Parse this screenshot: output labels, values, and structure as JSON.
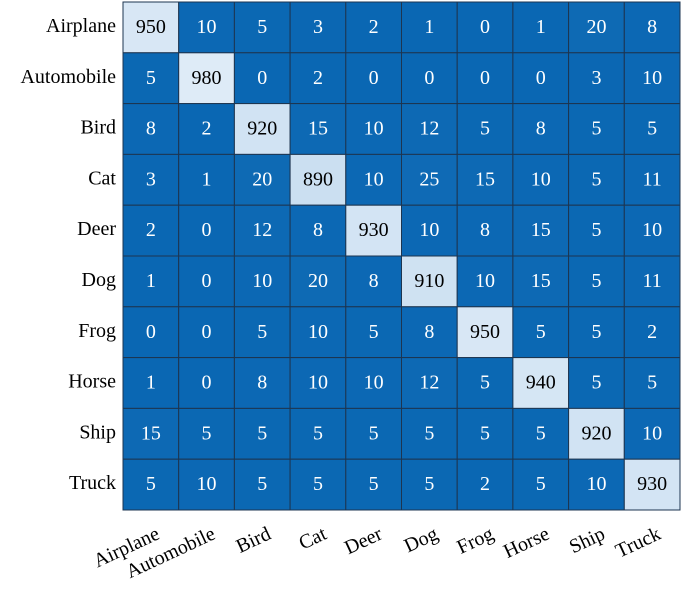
{
  "chart_data": {
    "type": "heatmap",
    "x_categories": [
      "Airplane",
      "Automobile",
      "Bird",
      "Cat",
      "Deer",
      "Dog",
      "Frog",
      "Horse",
      "Ship",
      "Truck"
    ],
    "y_categories": [
      "Airplane",
      "Automobile",
      "Bird",
      "Cat",
      "Deer",
      "Dog",
      "Frog",
      "Horse",
      "Ship",
      "Truck"
    ],
    "values": [
      [
        950,
        10,
        5,
        3,
        2,
        1,
        0,
        1,
        20,
        8
      ],
      [
        5,
        980,
        0,
        2,
        0,
        0,
        0,
        0,
        3,
        10
      ],
      [
        8,
        2,
        920,
        15,
        10,
        12,
        5,
        8,
        5,
        5
      ],
      [
        3,
        1,
        20,
        890,
        10,
        25,
        15,
        10,
        5,
        11
      ],
      [
        2,
        0,
        12,
        8,
        930,
        10,
        8,
        15,
        5,
        10
      ],
      [
        1,
        0,
        10,
        20,
        8,
        910,
        10,
        15,
        5,
        11
      ],
      [
        0,
        0,
        5,
        10,
        5,
        8,
        950,
        5,
        5,
        2
      ],
      [
        1,
        0,
        8,
        10,
        10,
        12,
        5,
        940,
        5,
        5
      ],
      [
        15,
        5,
        5,
        5,
        5,
        5,
        5,
        5,
        920,
        10
      ],
      [
        5,
        10,
        5,
        5,
        5,
        5,
        2,
        5,
        10,
        930
      ]
    ],
    "colorscale": [
      "#0a67b3",
      "#deebf7"
    ]
  }
}
